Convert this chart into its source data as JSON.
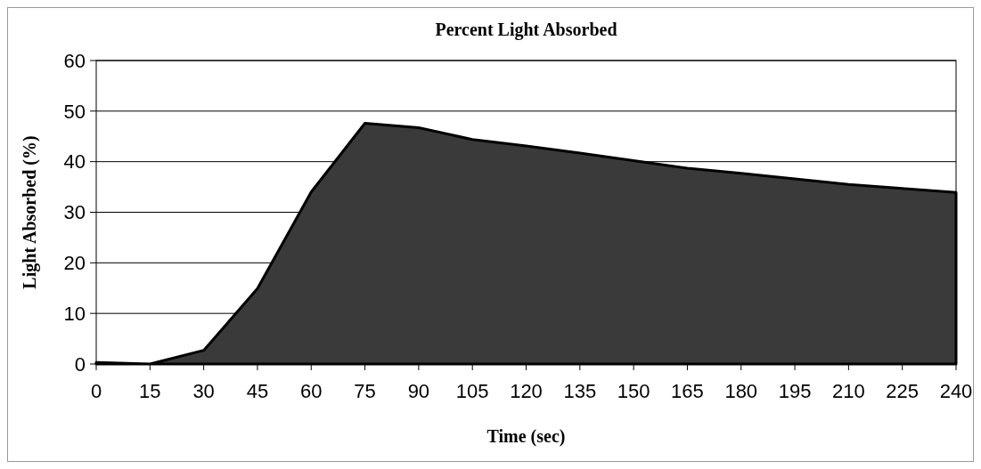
{
  "chart_data": {
    "type": "area",
    "title": "Percent Light Absorbed",
    "xlabel": "Time (sec)",
    "ylabel": "Light Absorbed (%)",
    "x": [
      0,
      15,
      30,
      45,
      60,
      75,
      90,
      105,
      120,
      135,
      150,
      165,
      180,
      195,
      210,
      225,
      240
    ],
    "series": [
      {
        "color": "#3a3a3a",
        "values": [
          0.3,
          0,
          2.7,
          14.9,
          34,
          47.6,
          46.7,
          44.4,
          43.1,
          41.7,
          40.2,
          38.7,
          37.7,
          36.6,
          35.5,
          34.7,
          33.9
        ]
      }
    ],
    "xlim": [
      0,
      240
    ],
    "xticks": [
      0,
      15,
      30,
      45,
      60,
      75,
      90,
      105,
      120,
      135,
      150,
      165,
      180,
      195,
      210,
      225,
      240
    ],
    "ylim": [
      0,
      60
    ],
    "yticks": [
      0,
      10,
      20,
      30,
      40,
      50,
      60
    ],
    "grid": "y"
  }
}
